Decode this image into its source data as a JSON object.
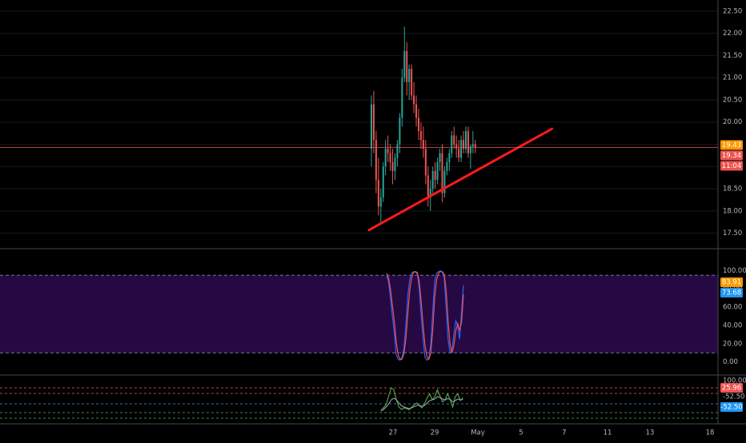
{
  "chart_data": [
    {
      "type": "candlestick",
      "pane": "price",
      "y_ticks": [
        17.5,
        18.0,
        18.5,
        19.0,
        19.5,
        20.0,
        20.5,
        21.0,
        21.5,
        22.0,
        22.5
      ],
      "ylim": [
        17.15,
        22.75
      ],
      "x_tick_labels": [
        "27",
        "29",
        "May",
        "5",
        "7",
        "11",
        "13",
        "18"
      ],
      "price_badges": [
        {
          "value": "19.43",
          "color": "#ff9800"
        },
        {
          "value": "19.34",
          "color": "#ef5350"
        },
        {
          "value": "11:04",
          "color": "#ef5350"
        }
      ],
      "last_price": 19.43,
      "trendline": {
        "from": [
          0,
          17.57
        ],
        "to": [
          76.5,
          19.85
        ],
        "color": "#ff1a1a"
      },
      "up_color": "#26a69a",
      "down_color": "#ef5350",
      "candles": [
        [
          19.4,
          20.6,
          19.0,
          20.4
        ],
        [
          20.4,
          20.7,
          19.3,
          19.6
        ],
        [
          19.6,
          19.8,
          18.4,
          18.7
        ],
        [
          18.7,
          19.2,
          17.9,
          18.1
        ],
        [
          18.1,
          18.5,
          17.7,
          18.3
        ],
        [
          18.3,
          19.1,
          18.2,
          19.0
        ],
        [
          19.0,
          19.6,
          18.8,
          19.4
        ],
        [
          19.4,
          19.7,
          19.1,
          19.3
        ],
        [
          19.3,
          19.5,
          18.9,
          19.1
        ],
        [
          19.1,
          19.4,
          18.6,
          18.9
        ],
        [
          18.9,
          19.3,
          18.7,
          19.2
        ],
        [
          19.2,
          19.6,
          19.0,
          19.5
        ],
        [
          19.5,
          20.2,
          19.3,
          20.1
        ],
        [
          20.1,
          21.2,
          19.9,
          21.0
        ],
        [
          21.0,
          22.15,
          20.9,
          21.6
        ],
        [
          21.6,
          21.8,
          20.6,
          20.9
        ],
        [
          20.9,
          21.3,
          20.5,
          21.2
        ],
        [
          21.2,
          21.3,
          20.5,
          20.6
        ],
        [
          20.6,
          20.9,
          20.2,
          20.4
        ],
        [
          20.4,
          20.6,
          19.9,
          20.1
        ],
        [
          20.1,
          20.3,
          19.6,
          19.8
        ],
        [
          19.8,
          20.0,
          19.4,
          19.6
        ],
        [
          19.6,
          19.9,
          19.2,
          19.4
        ],
        [
          19.4,
          19.6,
          18.6,
          18.8
        ],
        [
          18.8,
          19.0,
          18.1,
          18.3
        ],
        [
          18.3,
          18.7,
          18.0,
          18.5
        ],
        [
          18.5,
          19.0,
          18.4,
          18.9
        ],
        [
          18.9,
          19.1,
          18.5,
          18.7
        ],
        [
          18.7,
          19.2,
          18.6,
          19.1
        ],
        [
          19.1,
          19.4,
          18.9,
          19.3
        ],
        [
          19.3,
          19.5,
          18.2,
          18.4
        ],
        [
          18.4,
          19.0,
          18.3,
          18.9
        ],
        [
          18.9,
          19.2,
          18.8,
          19.1
        ],
        [
          19.1,
          19.4,
          18.9,
          19.3
        ],
        [
          19.3,
          19.8,
          19.2,
          19.7
        ],
        [
          19.7,
          19.9,
          19.4,
          19.5
        ],
        [
          19.5,
          19.7,
          19.2,
          19.4
        ],
        [
          19.4,
          19.6,
          19.1,
          19.2
        ],
        [
          19.2,
          19.7,
          19.1,
          19.6
        ],
        [
          19.6,
          19.8,
          19.3,
          19.4
        ],
        [
          19.4,
          19.9,
          19.3,
          19.8
        ],
        [
          19.8,
          19.9,
          19.2,
          19.3
        ],
        [
          19.3,
          19.5,
          18.95,
          19.45
        ],
        [
          19.45,
          19.8,
          19.3,
          19.5
        ],
        [
          19.5,
          19.6,
          19.3,
          19.43
        ]
      ]
    },
    {
      "type": "line",
      "pane": "stochastic",
      "y_ticks": [
        0.0,
        20.0,
        40.0,
        60.0,
        80.0,
        100.0
      ],
      "ylim": [
        -2,
        104
      ],
      "band": [
        10,
        95
      ],
      "price_badges": [
        {
          "value": "83.91",
          "color": "#ff9800"
        },
        {
          "value": "73.68",
          "color": "#2196f3"
        }
      ],
      "series": [
        {
          "color": "#2962ff",
          "values": [
            95,
            88,
            70,
            50,
            32,
            8,
            3,
            2,
            5,
            15,
            40,
            72,
            90,
            97,
            99,
            99,
            96,
            80,
            50,
            25,
            5,
            2,
            4,
            20,
            55,
            88,
            97,
            99,
            100,
            98,
            92,
            60,
            25,
            10,
            12,
            30,
            45,
            40,
            25,
            55,
            84
          ]
        },
        {
          "color": "#ef5350",
          "values": [
            97,
            92,
            80,
            62,
            45,
            22,
            8,
            3,
            3,
            9,
            25,
            52,
            78,
            92,
            98,
            99,
            98,
            88,
            66,
            40,
            18,
            6,
            3,
            10,
            35,
            70,
            90,
            97,
            99,
            99,
            96,
            78,
            45,
            20,
            10,
            18,
            34,
            42,
            35,
            43,
            74
          ]
        }
      ]
    },
    {
      "type": "line",
      "pane": "oscillator",
      "y_ticks": [
        100.0,
        -52.5
      ],
      "y_tick_labels": [
        "100.00",
        "-52.50"
      ],
      "price_badges": [
        {
          "value": "25.96",
          "color": "#ef5350"
        },
        {
          "value": "-52.50",
          "color": "#2196f3"
        }
      ],
      "series": [
        {
          "color": "#4caf50",
          "values": [
            5,
            10,
            18,
            40,
            60,
            55,
            30,
            12,
            6,
            10,
            8,
            5,
            12,
            18,
            22,
            15,
            10,
            20,
            35,
            45,
            30,
            38,
            55,
            40,
            25,
            30,
            45,
            30,
            12,
            38,
            45,
            28,
            35
          ]
        },
        {
          "color": "#9e9e9e",
          "values": [
            2,
            6,
            12,
            20,
            30,
            34,
            30,
            22,
            15,
            12,
            10,
            8,
            10,
            13,
            16,
            16,
            14,
            16,
            22,
            28,
            30,
            32,
            38,
            36,
            32,
            30,
            33,
            31,
            25,
            28,
            32,
            30,
            31
          ]
        }
      ]
    }
  ]
}
